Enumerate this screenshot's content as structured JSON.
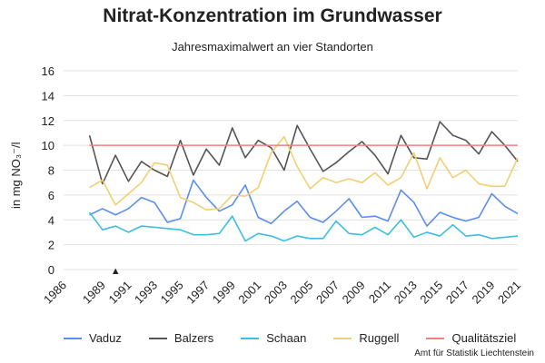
{
  "chart_data": {
    "type": "line",
    "title": "Nitrat-Konzentration im Grundwasser",
    "subtitle": "Jahresmaximalwert an vier Standorten",
    "ylabel": "in mg NO₃⁻/l",
    "xlabel": "",
    "ylim": [
      0,
      16
    ],
    "xlim": [
      1986,
      2021
    ],
    "yticks": [
      0,
      2,
      4,
      6,
      8,
      10,
      12,
      14,
      16
    ],
    "xticks": [
      "1986",
      "1989",
      "1991",
      "1993",
      "1995",
      "1997",
      "1999",
      "2001",
      "2003",
      "2005",
      "2007",
      "2009",
      "2011",
      "2013",
      "2015",
      "2017",
      "2019",
      "2021"
    ],
    "grid": "horizontal",
    "legend_position": "bottom",
    "marker": {
      "x": 1990,
      "y": 0,
      "symbol": "▲"
    },
    "x": [
      1988,
      1989,
      1990,
      1991,
      1992,
      1993,
      1994,
      1995,
      1996,
      1997,
      1998,
      1999,
      2000,
      2001,
      2002,
      2003,
      2004,
      2005,
      2006,
      2007,
      2008,
      2009,
      2010,
      2011,
      2012,
      2013,
      2014,
      2015,
      2016,
      2017,
      2018,
      2019,
      2020,
      2021
    ],
    "series": [
      {
        "name": "Vaduz",
        "color": "#5b8def",
        "values": [
          4.4,
          4.9,
          4.4,
          4.9,
          5.8,
          5.4,
          3.8,
          4.1,
          7.2,
          5.8,
          4.7,
          5.2,
          6.8,
          4.2,
          3.7,
          4.7,
          5.5,
          4.2,
          3.8,
          4.7,
          5.7,
          4.2,
          4.3,
          3.9,
          6.4,
          5.4,
          3.5,
          4.6,
          4.2,
          3.9,
          4.2,
          6.1,
          5.1,
          4.5
        ]
      },
      {
        "name": "Balzers",
        "color": "#555555",
        "values": [
          10.8,
          6.9,
          9.2,
          7.1,
          8.7,
          8.0,
          7.5,
          10.4,
          7.6,
          9.7,
          8.4,
          11.4,
          9.0,
          10.4,
          9.8,
          8.0,
          11.6,
          9.7,
          7.9,
          8.6,
          9.5,
          10.3,
          9.2,
          7.7,
          10.8,
          9.0,
          8.9,
          11.9,
          10.8,
          10.4,
          9.3,
          11.1,
          10.0,
          8.7
        ]
      },
      {
        "name": "Schaan",
        "color": "#3bbfe0",
        "values": [
          4.6,
          3.2,
          3.5,
          3.0,
          3.5,
          3.4,
          3.3,
          3.2,
          2.8,
          2.8,
          2.9,
          4.3,
          2.3,
          2.9,
          2.7,
          2.3,
          2.7,
          2.5,
          2.5,
          3.9,
          2.9,
          2.8,
          3.4,
          2.8,
          4.0,
          2.6,
          3.0,
          2.7,
          3.6,
          2.7,
          2.8,
          2.5,
          2.6,
          2.7
        ]
      },
      {
        "name": "Ruggell",
        "color": "#f2cf73",
        "values": [
          6.6,
          7.2,
          5.2,
          6.1,
          7.0,
          8.6,
          8.4,
          5.8,
          5.4,
          4.8,
          4.9,
          6.0,
          5.9,
          6.6,
          9.4,
          10.7,
          8.3,
          6.5,
          7.4,
          7.0,
          7.3,
          7.0,
          7.8,
          6.8,
          7.4,
          9.4,
          6.5,
          9.0,
          7.4,
          8.0,
          6.9,
          6.7,
          6.7,
          9.0
        ]
      },
      {
        "name": "Qualitätsziel",
        "color": "#f08080",
        "values": [
          10,
          10,
          10,
          10,
          10,
          10,
          10,
          10,
          10,
          10,
          10,
          10,
          10,
          10,
          10,
          10,
          10,
          10,
          10,
          10,
          10,
          10,
          10,
          10,
          10,
          10,
          10,
          10,
          10,
          10,
          10,
          10,
          10,
          10
        ]
      }
    ]
  },
  "source": "Amt für Statistik Liechtenstein"
}
